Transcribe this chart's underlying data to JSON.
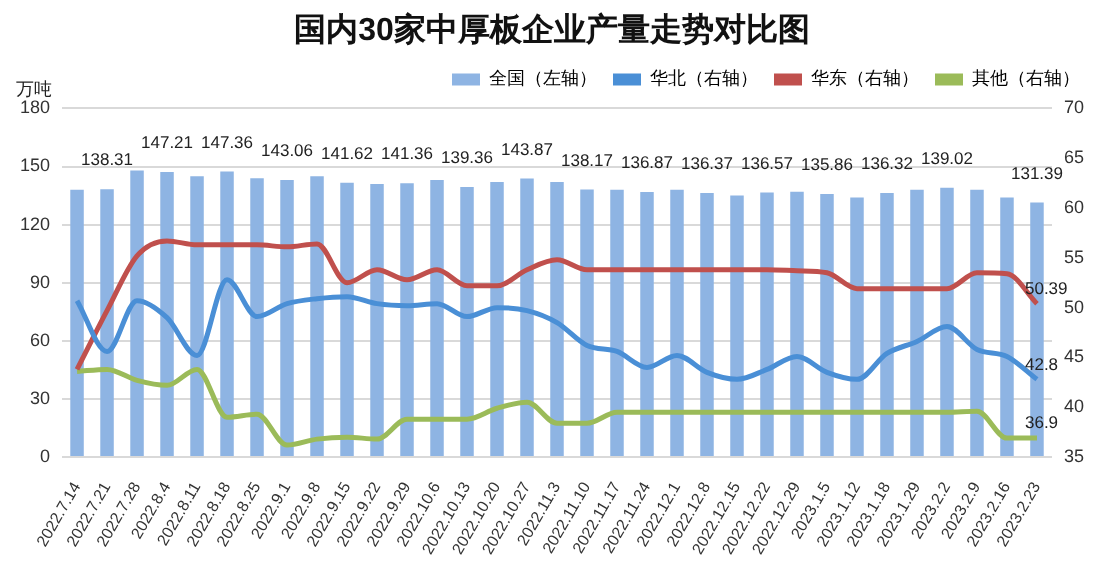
{
  "chart_data": {
    "type": "bar",
    "title": "国内30家中厚板企业产量走势对比图",
    "ylabel": "万吨",
    "categories": [
      "2022.7.14",
      "2022.7.21",
      "2022.7.28",
      "2022.8.4",
      "2022.8.11",
      "2022.8.18",
      "2022.8.25",
      "2022.9.1",
      "2022.9.8",
      "2022.9.15",
      "2022.9.22",
      "2022.9.29",
      "2022.10.6",
      "2022.10.13",
      "2022.10.20",
      "2022.10.27",
      "2022.11.3",
      "2022.11.10",
      "2022.11.17",
      "2022.11.24",
      "2022.12.1",
      "2022.12.8",
      "2022.12.15",
      "2022.12.22",
      "2022.12.29",
      "2023.1.5",
      "2023.1.12",
      "2023.1.18",
      "2023.1.29",
      "2023.2.2",
      "2023.2.9",
      "2023.2.16",
      "2023.2.23"
    ],
    "series": [
      {
        "name": "全国（左轴）",
        "color": "#8eb4e3",
        "values": [
          138,
          138.31,
          148,
          147.21,
          145,
          147.36,
          144,
          143.06,
          145,
          141.62,
          141,
          141.36,
          143,
          139.36,
          142,
          143.87,
          142,
          138.17,
          138,
          136.87,
          138,
          136.37,
          135,
          136.57,
          137,
          135.86,
          134,
          136.32,
          138,
          139.02,
          138,
          134,
          131.39
        ],
        "value_labels": [
          null,
          "138.31",
          null,
          "147.21",
          null,
          "147.36",
          null,
          "143.06",
          null,
          "141.62",
          null,
          "141.36",
          null,
          "139.36",
          null,
          "143.87",
          null,
          "138.17",
          null,
          "136.87",
          null,
          "136.37",
          null,
          "136.57",
          null,
          "135.86",
          null,
          "136.32",
          null,
          "139.02",
          null,
          null,
          "131.39"
        ]
      },
      {
        "name": "华北（右轴）",
        "type": "line",
        "axis": "y2",
        "color": "#4a8fd6",
        "values": [
          50.7,
          45.6,
          50.7,
          49,
          45.2,
          52.8,
          49.1,
          50.4,
          50.9,
          51.1,
          50.4,
          50.2,
          50.4,
          49.1,
          50,
          49.7,
          48.5,
          46.2,
          45.6,
          44,
          45.2,
          43.5,
          42.8,
          43.8,
          45.1,
          43.5,
          42.8,
          45.4,
          46.6,
          48.1,
          45.8,
          45.1,
          42.8
        ],
        "value_labels": [
          null,
          null,
          null,
          null,
          null,
          null,
          null,
          null,
          null,
          null,
          null,
          null,
          null,
          null,
          null,
          null,
          null,
          null,
          null,
          null,
          null,
          null,
          null,
          null,
          null,
          null,
          null,
          null,
          null,
          null,
          null,
          null,
          "42.8"
        ]
      },
      {
        "name": "华东（右轴）",
        "type": "line",
        "axis": "y2",
        "color": "#c0504d",
        "values": [
          43.8,
          49.7,
          55.2,
          56.7,
          56.3,
          56.3,
          56.3,
          56.1,
          56.4,
          52.5,
          53.8,
          52.8,
          53.8,
          52.2,
          52.2,
          53.8,
          54.8,
          53.8,
          53.8,
          53.8,
          53.8,
          53.8,
          53.8,
          53.8,
          53.7,
          53.5,
          51.9,
          51.9,
          51.9,
          51.9,
          53.5,
          53.4,
          50.39
        ],
        "value_labels": [
          null,
          null,
          null,
          null,
          null,
          null,
          null,
          null,
          null,
          null,
          null,
          null,
          null,
          null,
          null,
          null,
          null,
          null,
          null,
          null,
          null,
          null,
          null,
          null,
          null,
          null,
          null,
          null,
          null,
          null,
          null,
          null,
          "50.39"
        ]
      },
      {
        "name": "其他（右轴）",
        "type": "line",
        "axis": "y2",
        "color": "#9bbb59",
        "values": [
          43.6,
          43.8,
          42.7,
          42.2,
          43.8,
          39,
          39.3,
          36.2,
          36.8,
          37,
          36.8,
          38.8,
          38.8,
          38.8,
          39.9,
          40.5,
          38.4,
          38.4,
          39.5,
          39.5,
          39.5,
          39.5,
          39.5,
          39.5,
          39.5,
          39.5,
          39.5,
          39.5,
          39.5,
          39.5,
          39.6,
          36.9,
          36.9
        ],
        "value_labels": [
          null,
          null,
          null,
          null,
          null,
          null,
          null,
          null,
          null,
          null,
          null,
          null,
          null,
          null,
          null,
          null,
          null,
          null,
          null,
          null,
          null,
          null,
          null,
          null,
          null,
          null,
          null,
          null,
          null,
          null,
          null,
          null,
          "36.9"
        ]
      }
    ],
    "ylim": [
      0,
      180
    ],
    "yticks": [
      0,
      30,
      60,
      90,
      120,
      150,
      180
    ],
    "y2lim": [
      35,
      70
    ],
    "y2ticks": [
      35,
      40,
      45,
      50,
      55,
      60,
      65,
      70
    ],
    "grid": "y",
    "legend": "top right",
    "marker": "none",
    "line_style": "solid"
  }
}
